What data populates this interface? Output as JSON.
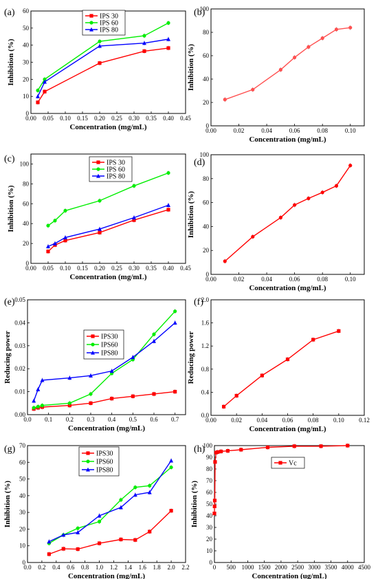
{
  "chart_data": [
    {
      "panel": "(a)",
      "type": "line",
      "xlabel": "Concentration (mg/mL)",
      "ylabel": "Inhibition (%)",
      "xlim": [
        0,
        0.45
      ],
      "ylim": [
        0,
        60
      ],
      "xticks": [
        "0.00",
        "0.05",
        "0.10",
        "0.15",
        "0.20",
        "0.25",
        "0.30",
        "0.35",
        "0.40",
        "0.45"
      ],
      "yticks": [
        "0",
        "10",
        "20",
        "30",
        "40",
        "50",
        "60"
      ],
      "legend": "top-left",
      "series": [
        {
          "name": "IPS 30",
          "color": "#ff0000",
          "marker": "square",
          "x": [
            0.02,
            0.04,
            0.2,
            0.33,
            0.4
          ],
          "y": [
            6.5,
            12.8,
            29.5,
            36.5,
            38.3
          ]
        },
        {
          "name": "IPS 60",
          "color": "#00ee00",
          "marker": "circle",
          "x": [
            0.02,
            0.04,
            0.2,
            0.33,
            0.4
          ],
          "y": [
            13.5,
            20.0,
            42.2,
            45.5,
            53.0
          ]
        },
        {
          "name": "IPS 80",
          "color": "#0000ff",
          "marker": "triangle",
          "x": [
            0.02,
            0.04,
            0.2,
            0.33,
            0.4
          ],
          "y": [
            10.0,
            18.5,
            39.5,
            41.2,
            43.5
          ]
        }
      ]
    },
    {
      "panel": "(b)",
      "type": "line",
      "xlabel": "Concentration (mg/mL)",
      "ylabel": "Inhibition (%)",
      "xlim": [
        0,
        0.11
      ],
      "ylim": [
        0,
        100
      ],
      "xticks": [
        "0.00",
        "0.02",
        "0.04",
        "0.06",
        "0.08",
        "0.10"
      ],
      "yticks": [
        "0",
        "20",
        "40",
        "60",
        "80",
        "100"
      ],
      "series": [
        {
          "color": "#ff5050",
          "marker": "circle",
          "x": [
            0.01,
            0.03,
            0.05,
            0.06,
            0.07,
            0.08,
            0.09,
            0.1
          ],
          "y": [
            22.5,
            31.0,
            48.0,
            58.5,
            67.5,
            75.0,
            82.5,
            84.0
          ]
        }
      ]
    },
    {
      "panel": "(c)",
      "type": "line",
      "xlabel": "Concentration (mg/mL)",
      "ylabel": "Inhibition (%)",
      "xlim": [
        0,
        0.45
      ],
      "ylim": [
        0,
        110
      ],
      "xticks": [
        "0.00",
        "0.05",
        "0.10",
        "0.15",
        "0.20",
        "0.25",
        "0.30",
        "0.35",
        "0.40",
        "0.45"
      ],
      "yticks": [
        "0",
        "20",
        "40",
        "60",
        "80",
        "100"
      ],
      "legend": "top-center",
      "series": [
        {
          "name": "IPS 30",
          "color": "#ff0000",
          "marker": "square",
          "x": [
            0.05,
            0.07,
            0.1,
            0.2,
            0.3,
            0.4
          ],
          "y": [
            12.0,
            18.5,
            23.0,
            31.0,
            43.5,
            54.0
          ]
        },
        {
          "name": "IPS 60",
          "color": "#00ee00",
          "marker": "circle",
          "x": [
            0.05,
            0.07,
            0.1,
            0.2,
            0.3,
            0.4
          ],
          "y": [
            38.0,
            43.0,
            53.0,
            63.0,
            78.0,
            91.0
          ]
        },
        {
          "name": "IPS 80",
          "color": "#0000ff",
          "marker": "triangle",
          "x": [
            0.05,
            0.07,
            0.1,
            0.2,
            0.3,
            0.4
          ],
          "y": [
            17.0,
            20.0,
            26.0,
            34.5,
            46.0,
            58.5
          ]
        }
      ]
    },
    {
      "panel": "(d)",
      "type": "line",
      "xlabel": "Concentration (mg/mL)",
      "ylabel": "Inhibition (%)",
      "xlim": [
        0,
        0.11
      ],
      "ylim": [
        0,
        100
      ],
      "xticks": [
        "0.00",
        "0.02",
        "0.04",
        "0.06",
        "0.08",
        "0.10"
      ],
      "yticks": [
        "0",
        "20",
        "40",
        "60",
        "80",
        "100"
      ],
      "series": [
        {
          "color": "#ff0000",
          "marker": "circle",
          "x": [
            0.01,
            0.03,
            0.05,
            0.06,
            0.07,
            0.08,
            0.09,
            0.1
          ],
          "y": [
            11.0,
            31.5,
            47.5,
            58.0,
            63.5,
            68.5,
            74.0,
            91.0
          ]
        }
      ]
    },
    {
      "panel": "(e)",
      "type": "line",
      "xlabel": "Concentration (mg/mL)",
      "ylabel": "Reducing power",
      "xlim": [
        0,
        0.75
      ],
      "ylim": [
        0,
        0.05
      ],
      "xticks": [
        "0.0",
        "0.1",
        "0.2",
        "0.3",
        "0.4",
        "0.5",
        "0.6",
        "0.7"
      ],
      "yticks": [
        "0.00",
        "0.01",
        "0.02",
        "0.03",
        "0.04",
        "0.05"
      ],
      "legend": "top-left",
      "series": [
        {
          "name": "IPS30",
          "color": "#ff0000",
          "marker": "square",
          "x": [
            0.03,
            0.05,
            0.07,
            0.2,
            0.3,
            0.4,
            0.5,
            0.6,
            0.7
          ],
          "y": [
            0.0025,
            0.003,
            0.0033,
            0.004,
            0.005,
            0.007,
            0.008,
            0.009,
            0.01
          ]
        },
        {
          "name": "IPS60",
          "color": "#00ee00",
          "marker": "circle",
          "x": [
            0.03,
            0.05,
            0.07,
            0.2,
            0.3,
            0.4,
            0.5,
            0.6,
            0.7
          ],
          "y": [
            0.003,
            0.0035,
            0.004,
            0.005,
            0.009,
            0.018,
            0.024,
            0.035,
            0.045
          ]
        },
        {
          "name": "IPS80",
          "color": "#0000ff",
          "marker": "triangle",
          "x": [
            0.03,
            0.05,
            0.07,
            0.2,
            0.3,
            0.4,
            0.5,
            0.6,
            0.7
          ],
          "y": [
            0.006,
            0.011,
            0.015,
            0.016,
            0.017,
            0.019,
            0.025,
            0.032,
            0.04
          ]
        }
      ]
    },
    {
      "panel": "(f)",
      "type": "line",
      "xlabel": "Concentration (mg/mL)",
      "ylabel": "Reducing power",
      "xlim": [
        0,
        0.12
      ],
      "ylim": [
        0,
        2.0
      ],
      "xticks": [
        "0.00",
        "0.02",
        "0.04",
        "0.06",
        "0.08",
        "0.10",
        "0.12"
      ],
      "yticks": [
        "0.0",
        "0.4",
        "0.8",
        "1.2",
        "1.6",
        "2.0"
      ],
      "series": [
        {
          "color": "#ff0000",
          "marker": "square",
          "x": [
            0.01,
            0.02,
            0.04,
            0.06,
            0.08,
            0.1
          ],
          "y": [
            0.15,
            0.34,
            0.69,
            0.97,
            1.31,
            1.46
          ]
        }
      ]
    },
    {
      "panel": "(g)",
      "type": "line",
      "xlabel": "Concentration (mg/mL)",
      "ylabel": "Inhibition (%)",
      "xlim": [
        0,
        2.2
      ],
      "ylim": [
        0,
        70
      ],
      "xticks": [
        "0.0",
        "0.2",
        "0.4",
        "0.6",
        "0.8",
        "1.0",
        "1.2",
        "1.4",
        "1.6",
        "1.8",
        "2.0",
        "2.2"
      ],
      "yticks": [
        "0",
        "10",
        "20",
        "30",
        "40",
        "50",
        "60",
        "70"
      ],
      "legend": "top-left",
      "series": [
        {
          "name": "IPS30",
          "color": "#ff0000",
          "marker": "square",
          "x": [
            0.3,
            0.5,
            0.7,
            1.0,
            1.3,
            1.5,
            1.7,
            2.0
          ],
          "y": [
            5.0,
            8.2,
            8.0,
            11.5,
            13.8,
            13.5,
            18.5,
            31.0
          ]
        },
        {
          "name": "IPS60",
          "color": "#00ee00",
          "marker": "circle",
          "x": [
            0.3,
            0.5,
            0.7,
            1.0,
            1.3,
            1.5,
            1.7,
            2.0
          ],
          "y": [
            11.5,
            16.5,
            20.5,
            24.5,
            37.5,
            45.0,
            46.0,
            57.0
          ]
        },
        {
          "name": "IPS80",
          "color": "#0000ff",
          "marker": "triangle",
          "x": [
            0.3,
            0.5,
            0.7,
            1.0,
            1.3,
            1.5,
            1.7,
            2.0
          ],
          "y": [
            12.5,
            16.5,
            18.0,
            28.0,
            33.0,
            40.5,
            42.0,
            61.0
          ]
        }
      ]
    },
    {
      "panel": "(h)",
      "type": "line",
      "xlabel": "Concentration (ug/mL)",
      "ylabel": "Inhibition (%)",
      "xlim": [
        0,
        4500
      ],
      "ylim": [
        0,
        100
      ],
      "xticks": [
        "0",
        "500",
        "1000",
        "1500",
        "2000",
        "2500",
        "3000",
        "3500",
        "4000",
        "4500"
      ],
      "yticks": [
        "0",
        "10",
        "20",
        "30",
        "40",
        "50",
        "60",
        "70",
        "80",
        "90",
        "100"
      ],
      "legend": "top-center",
      "series": [
        {
          "name": "Vc",
          "color": "#ff0000",
          "marker": "square",
          "x": [
            0,
            5,
            10,
            20,
            50,
            100,
            200,
            400,
            800,
            1600,
            2400,
            3200,
            4000
          ],
          "y": [
            42,
            48,
            53,
            86,
            94,
            94.5,
            95,
            95.5,
            96.5,
            98.5,
            99.5,
            99.5,
            100
          ]
        }
      ]
    }
  ]
}
